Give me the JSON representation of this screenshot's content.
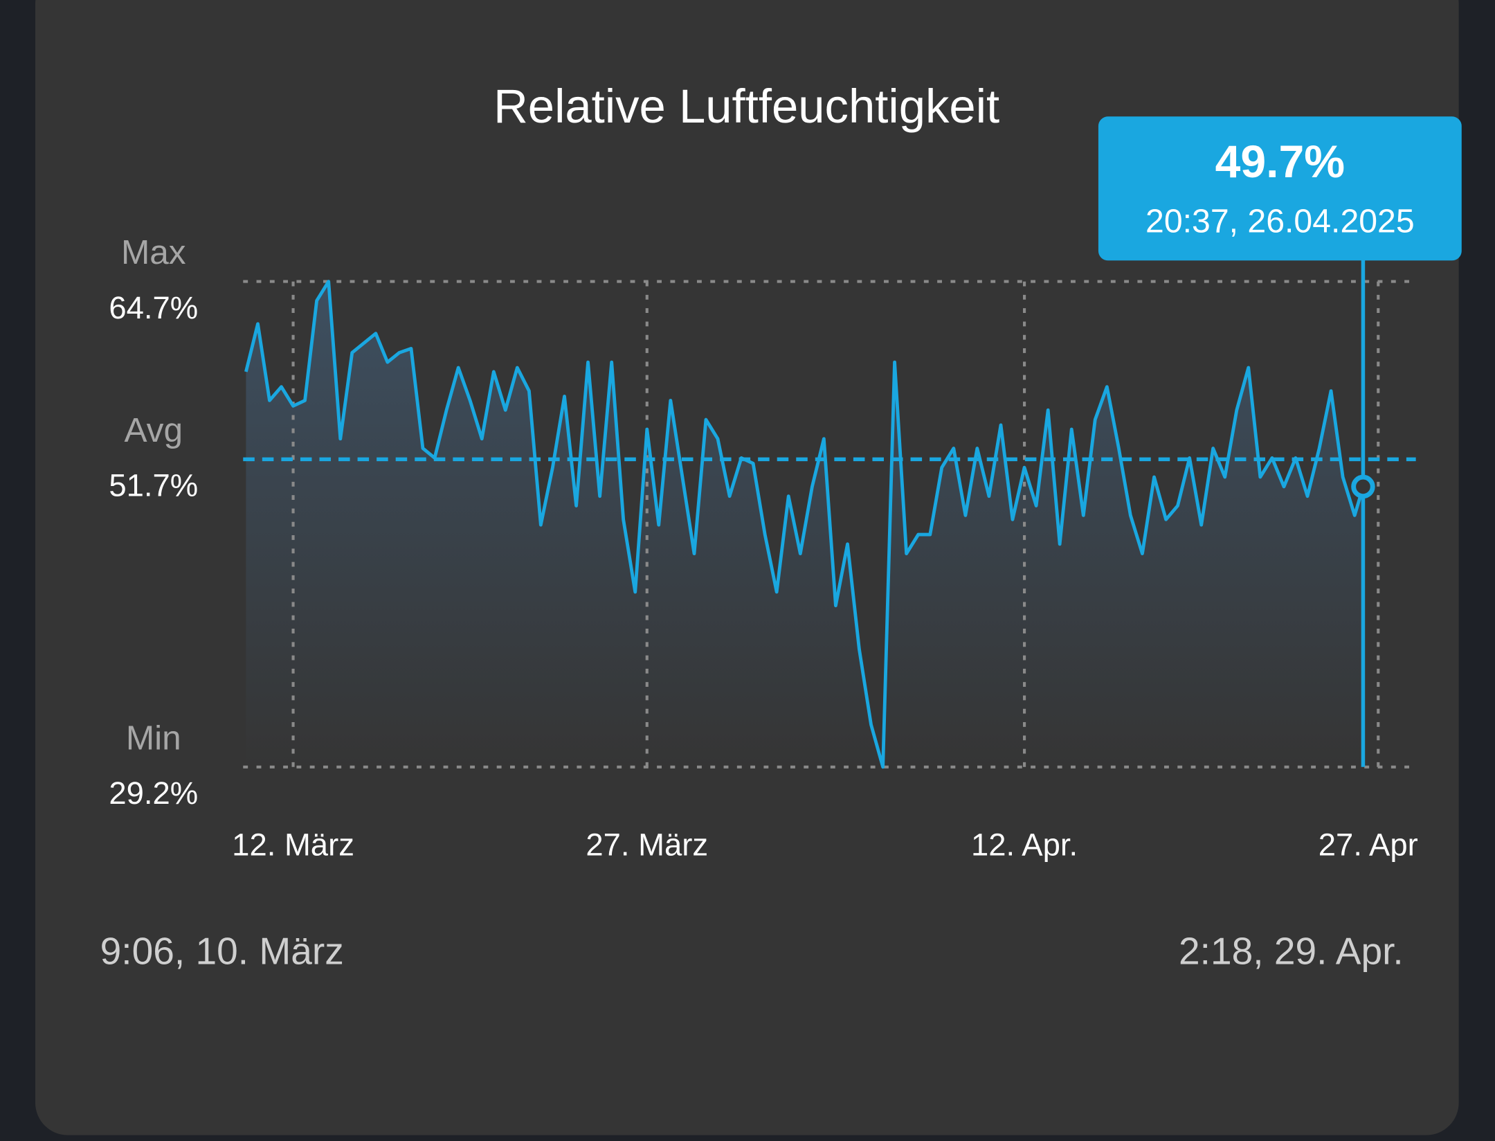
{
  "chart_data": {
    "type": "line",
    "title": "Relative Luftfeuchtigkeit",
    "xlim": [
      {
        "value": "2025-03-10T09:06",
        "label": "9:06,  10. März"
      },
      {
        "value": "2025-04-29T02:18",
        "label": "2:18,  29. Apr."
      }
    ],
    "xticks": [
      {
        "value": "2025-03-12T12:00",
        "label": "12. März"
      },
      {
        "value": "2025-03-27T12:00",
        "label": "27. März"
      },
      {
        "value": "2025-04-12T12:00",
        "label": "12. Apr."
      },
      {
        "value": "2025-04-27T12:00",
        "label": "27. Apr"
      }
    ],
    "ylim": [
      29.2,
      64.7
    ],
    "yticks": [
      {
        "value": 64.7,
        "label": "64.7%"
      },
      {
        "value": 51.7,
        "label": "51.7%"
      },
      {
        "value": 29.2,
        "label": "29.2%"
      }
    ],
    "ytick_names": [
      "Max",
      "Avg",
      "Min"
    ],
    "grid": true,
    "x": [
      "2025-03-10T12:00",
      "2025-03-11T00:00",
      "2025-03-11T12:00",
      "2025-03-12T00:00",
      "2025-03-12T12:00",
      "2025-03-13T00:00",
      "2025-03-13T12:00",
      "2025-03-14T00:00",
      "2025-03-14T12:00",
      "2025-03-15T00:00",
      "2025-03-15T12:00",
      "2025-03-16T00:00",
      "2025-03-16T12:00",
      "2025-03-17T00:00",
      "2025-03-17T12:00",
      "2025-03-18T00:00",
      "2025-03-18T12:00",
      "2025-03-19T00:00",
      "2025-03-19T12:00",
      "2025-03-20T00:00",
      "2025-03-20T12:00",
      "2025-03-21T00:00",
      "2025-03-21T12:00",
      "2025-03-22T00:00",
      "2025-03-22T12:00",
      "2025-03-23T00:00",
      "2025-03-23T12:00",
      "2025-03-24T00:00",
      "2025-03-24T12:00",
      "2025-03-25T00:00",
      "2025-03-25T12:00",
      "2025-03-26T00:00",
      "2025-03-26T12:00",
      "2025-03-27T00:00",
      "2025-03-27T12:00",
      "2025-03-28T00:00",
      "2025-03-28T12:00",
      "2025-03-29T00:00",
      "2025-03-29T12:00",
      "2025-03-30T00:00",
      "2025-03-30T12:00",
      "2025-03-31T00:00",
      "2025-03-31T12:00",
      "2025-04-01T00:00",
      "2025-04-01T12:00",
      "2025-04-02T00:00",
      "2025-04-02T12:00",
      "2025-04-03T00:00",
      "2025-04-03T12:00",
      "2025-04-04T00:00",
      "2025-04-04T12:00",
      "2025-04-05T00:00",
      "2025-04-05T12:00",
      "2025-04-06T00:00",
      "2025-04-06T12:00",
      "2025-04-07T00:00",
      "2025-04-07T12:00",
      "2025-04-08T00:00",
      "2025-04-08T12:00",
      "2025-04-09T00:00",
      "2025-04-09T12:00",
      "2025-04-10T00:00",
      "2025-04-10T12:00",
      "2025-04-11T00:00",
      "2025-04-11T12:00",
      "2025-04-12T00:00",
      "2025-04-12T12:00",
      "2025-04-13T00:00",
      "2025-04-13T12:00",
      "2025-04-14T00:00",
      "2025-04-14T12:00",
      "2025-04-15T00:00",
      "2025-04-15T12:00",
      "2025-04-16T00:00",
      "2025-04-16T12:00",
      "2025-04-17T00:00",
      "2025-04-17T12:00",
      "2025-04-18T00:00",
      "2025-04-18T12:00",
      "2025-04-19T00:00",
      "2025-04-19T12:00",
      "2025-04-20T00:00",
      "2025-04-20T12:00",
      "2025-04-21T00:00",
      "2025-04-21T12:00",
      "2025-04-22T00:00",
      "2025-04-22T12:00",
      "2025-04-23T00:00",
      "2025-04-23T12:00",
      "2025-04-24T00:00",
      "2025-04-24T12:00",
      "2025-04-25T00:00",
      "2025-04-25T12:00",
      "2025-04-26T00:00",
      "2025-04-26T12:00",
      "2025-04-26T20:37"
    ],
    "series": [
      {
        "name": "Relative Luftfeuchtigkeit",
        "color": "#1aa7e0",
        "values": [
          58.1,
          61.6,
          56.0,
          57.0,
          55.6,
          56.0,
          63.3,
          64.7,
          53.2,
          59.5,
          60.2,
          60.9,
          58.8,
          59.5,
          59.8,
          52.5,
          51.8,
          55.3,
          58.4,
          56.0,
          53.2,
          58.1,
          55.3,
          58.4,
          56.7,
          46.9,
          51.1,
          56.3,
          48.3,
          58.8,
          49.0,
          58.8,
          47.3,
          42.0,
          53.9,
          46.9,
          56.0,
          50.4,
          44.8,
          54.6,
          53.2,
          49.0,
          51.8,
          51.4,
          46.2,
          42.0,
          49.0,
          44.8,
          49.7,
          53.2,
          41.0,
          45.5,
          37.8,
          32.3,
          29.2,
          58.8,
          44.8,
          46.2,
          46.2,
          51.1,
          52.5,
          47.6,
          52.5,
          49.0,
          54.2,
          47.3,
          51.1,
          48.3,
          55.3,
          45.5,
          53.9,
          47.6,
          54.6,
          57.0,
          52.5,
          47.6,
          44.8,
          50.4,
          47.3,
          48.3,
          51.8,
          46.9,
          52.5,
          50.4,
          55.3,
          58.4,
          50.4,
          51.8,
          49.7,
          51.8,
          49.0,
          52.5,
          56.7,
          50.4,
          47.6,
          49.7
        ]
      }
    ],
    "tooltip": {
      "value_label": "49.7%",
      "time_label": "20:37,  26.04.2025"
    }
  }
}
